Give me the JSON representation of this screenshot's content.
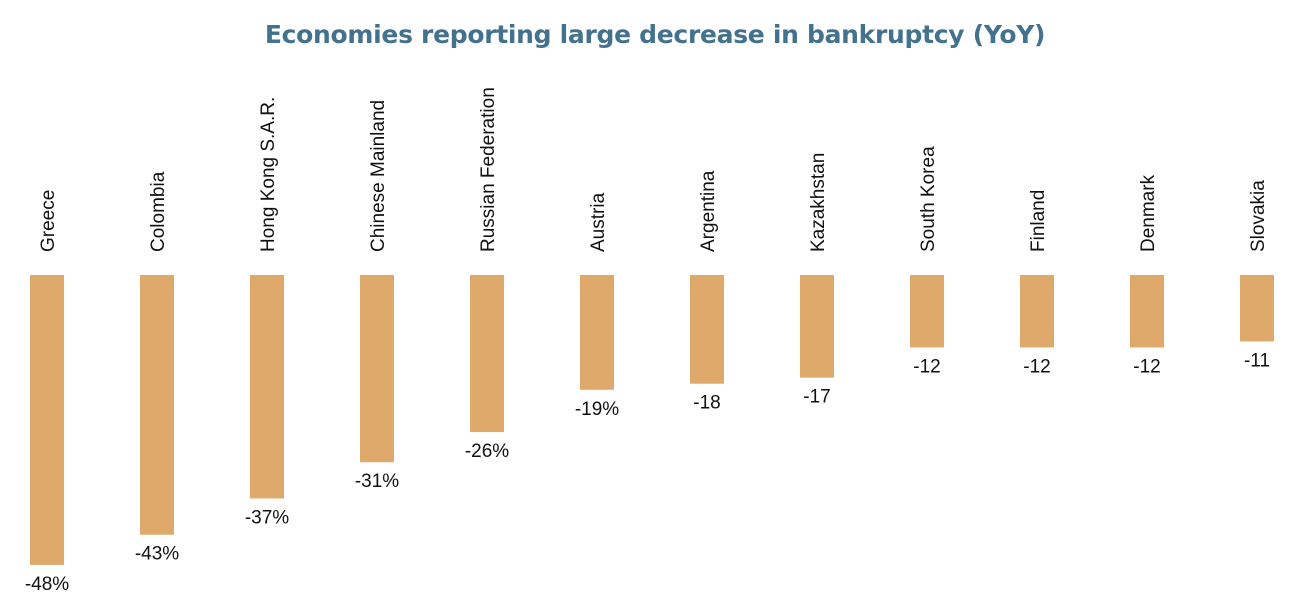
{
  "chart_data": {
    "type": "bar",
    "title": "Economies reporting large decrease in bankruptcy (YoY)",
    "xlabel": "",
    "ylabel": "",
    "ylim": [
      -48,
      0
    ],
    "grid": false,
    "legend": "none",
    "categories": [
      "Greece",
      "Colombia",
      "Hong Kong S.A.R.",
      "Chinese Mainland",
      "Russian Federation",
      "Austria",
      "Argentina",
      "Kazakhstan",
      "South Korea",
      "Finland",
      "Denmark",
      "Slovakia"
    ],
    "values": [
      -48,
      -43,
      -37,
      -31,
      -26,
      -19,
      -18,
      -17,
      -12,
      -12,
      -12,
      -11
    ],
    "value_labels": [
      "-48%",
      "-43%",
      "-37%",
      "-31%",
      "-26%",
      "-19%",
      "-18",
      "-17",
      "-12",
      "-12",
      "-12",
      "-11"
    ]
  },
  "colors": {
    "bar": "#dfa96b",
    "title": "#43728e"
  }
}
